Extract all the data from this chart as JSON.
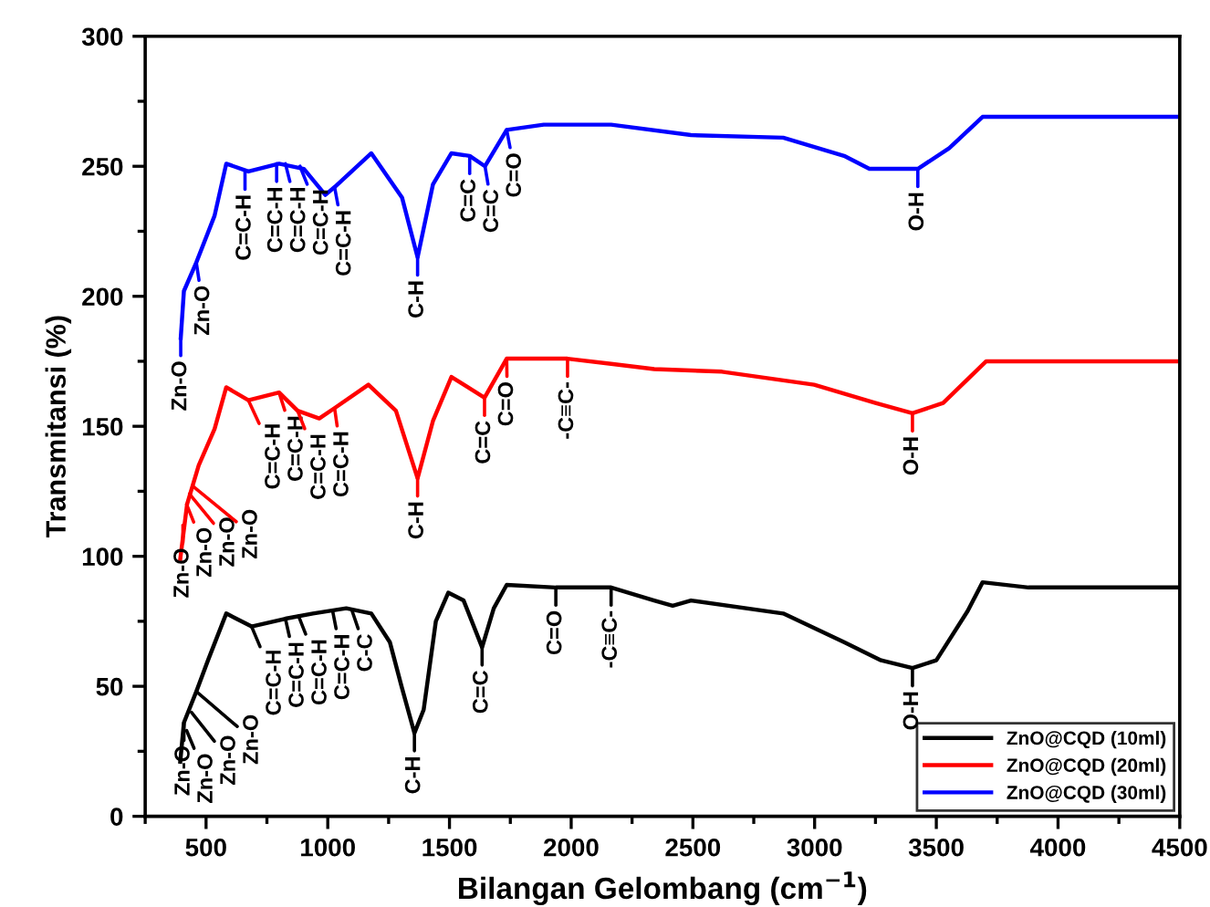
{
  "chart_data": {
    "type": "line",
    "xlabel": "Bilangan Gelombang (cm$^{−1}$)",
    "ylabel": "Transmitansi (%)",
    "xlim": [
      250,
      4500
    ],
    "ylim": [
      0,
      300
    ],
    "xticks": [
      500,
      1000,
      1500,
      2000,
      2500,
      3000,
      3500,
      4000,
      4500
    ],
    "yticks": [
      0,
      50,
      100,
      150,
      200,
      250,
      300
    ],
    "grid": false,
    "legend": "bottom right",
    "line_style": "solid",
    "marker": "none",
    "series": [
      {
        "name": "ZnO@CQD (10ml)",
        "color": "#000000",
        "x": [
          394,
          409,
          460,
          508,
          583,
          687,
          826,
          939,
          1076,
          1179,
          1255,
          1303,
          1356,
          1394,
          1444,
          1495,
          1558,
          1634,
          1682,
          1735,
          1937,
          2164,
          2341,
          2417,
          2492,
          2871,
          3121,
          3273,
          3402,
          3500,
          3629,
          3690,
          3879,
          4500
        ],
        "values": [
          21,
          36,
          48,
          60,
          78,
          73,
          76,
          78,
          80,
          78,
          67,
          50,
          32,
          41,
          75,
          86,
          83,
          65,
          80,
          89,
          88,
          88,
          83,
          81,
          83,
          78,
          67,
          60,
          57,
          60,
          79,
          90,
          88,
          88
        ]
      },
      {
        "name": "ZnO@CQD (20ml)",
        "color": "#ff0000",
        "x": [
          394,
          422,
          470,
          535,
          583,
          674,
          800,
          876,
          965,
          1028,
          1167,
          1280,
          1369,
          1432,
          1508,
          1644,
          1735,
          1985,
          2164,
          2341,
          2619,
          2998,
          3250,
          3402,
          3528,
          3705,
          4500
        ],
        "values": [
          99,
          120,
          135,
          149,
          165,
          160,
          163,
          156,
          153,
          157,
          166,
          156,
          130,
          152,
          169,
          161,
          176,
          176,
          174,
          172,
          171,
          166,
          159,
          155,
          159,
          175,
          175
        ]
      },
      {
        "name": "ZnO@CQD (30ml)",
        "color": "#0000ff",
        "x": [
          396,
          409,
          460,
          535,
          583,
          674,
          800,
          902,
          990,
          1028,
          1179,
          1305,
          1369,
          1432,
          1508,
          1583,
          1646,
          1735,
          1887,
          2164,
          2492,
          2871,
          3121,
          3225,
          3424,
          3553,
          3690,
          4500
        ],
        "values": [
          184,
          202,
          213,
          231,
          251,
          248,
          251,
          249,
          239,
          242,
          255,
          238,
          215,
          243,
          255,
          254,
          250,
          264,
          266,
          266,
          262,
          261,
          254,
          249,
          249,
          257,
          269,
          269
        ]
      }
    ],
    "annotations": [
      {
        "text": "Zn-O",
        "x": 409,
        "y": 36
      },
      {
        "text": "Zn-O",
        "x": 420,
        "y": 33
      },
      {
        "text": "Zn-O",
        "x": 440,
        "y": 40
      },
      {
        "text": "Zn-O",
        "x": 460,
        "y": 48
      },
      {
        "text": "C=C-H",
        "x": 687,
        "y": 73
      },
      {
        "text": "C=C-H",
        "x": 826,
        "y": 76
      },
      {
        "text": "C=C-H",
        "x": 880,
        "y": 77
      },
      {
        "text": "C=C-H",
        "x": 1020,
        "y": 79
      },
      {
        "text": "C-C",
        "x": 1100,
        "y": 79
      },
      {
        "text": "C-H",
        "x": 1356,
        "y": 32
      },
      {
        "text": "C=C",
        "x": 1634,
        "y": 65
      },
      {
        "text": "C=O",
        "x": 1937,
        "y": 88
      },
      {
        "text": "-C≡C-",
        "x": 2164,
        "y": 88
      },
      {
        "text": "O-H",
        "x": 3402,
        "y": 57
      },
      {
        "text": "Zn-O",
        "x": 405,
        "y": 112
      },
      {
        "text": "Zn-O",
        "x": 420,
        "y": 120
      },
      {
        "text": "Zn-O",
        "x": 432,
        "y": 124
      },
      {
        "text": "Zn-O",
        "x": 445,
        "y": 127
      },
      {
        "text": "C=C-H",
        "x": 674,
        "y": 160
      },
      {
        "text": "C=C-H",
        "x": 800,
        "y": 163
      },
      {
        "text": "C=C-H",
        "x": 876,
        "y": 156
      },
      {
        "text": "C=C-H",
        "x": 1028,
        "y": 157
      },
      {
        "text": "C-H",
        "x": 1369,
        "y": 130
      },
      {
        "text": "C=C",
        "x": 1644,
        "y": 161
      },
      {
        "text": "C=O",
        "x": 1735,
        "y": 176
      },
      {
        "text": "-C≡C-",
        "x": 1985,
        "y": 176
      },
      {
        "text": "O-H",
        "x": 3402,
        "y": 155
      },
      {
        "text": "Zn-O",
        "x": 396,
        "y": 184
      },
      {
        "text": "Zn-O",
        "x": 460,
        "y": 213
      },
      {
        "text": "C=C-H",
        "x": 660,
        "y": 248
      },
      {
        "text": "C=C-H",
        "x": 790,
        "y": 251
      },
      {
        "text": "C=C-H",
        "x": 826,
        "y": 251
      },
      {
        "text": "C=C-H",
        "x": 886,
        "y": 250
      },
      {
        "text": "C=C-H",
        "x": 1028,
        "y": 242
      },
      {
        "text": "C-H",
        "x": 1369,
        "y": 215
      },
      {
        "text": "C=C",
        "x": 1583,
        "y": 254
      },
      {
        "text": "C=C",
        "x": 1646,
        "y": 250
      },
      {
        "text": "C=O",
        "x": 1735,
        "y": 264
      },
      {
        "text": "O-H",
        "x": 3424,
        "y": 249
      }
    ]
  }
}
